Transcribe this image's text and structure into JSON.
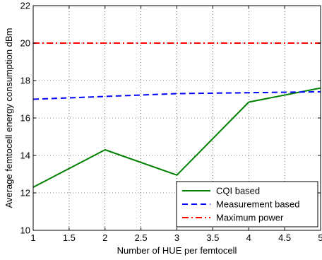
{
  "chart_data": {
    "type": "line",
    "xlabel": "Number of HUE per femtocell",
    "ylabel": "Average femtocell energy consumption dBm",
    "xlim": [
      1,
      5
    ],
    "ylim": [
      10,
      22
    ],
    "xticks": [
      "1",
      "1.5",
      "2",
      "2.5",
      "3",
      "3.5",
      "4",
      "4.5",
      "5"
    ],
    "yticks": [
      "10",
      "12",
      "14",
      "16",
      "18",
      "20",
      "22"
    ],
    "grid": true,
    "legend_position": "bottom-right",
    "series": [
      {
        "name": "CQI based",
        "color": "#008000",
        "style": "solid",
        "x": [
          1,
          2,
          3,
          4,
          5
        ],
        "y": [
          12.3,
          14.3,
          12.95,
          16.85,
          17.6
        ]
      },
      {
        "name": "Measurement based",
        "color": "#0000ff",
        "style": "dashed",
        "x": [
          1,
          2,
          3,
          4,
          5
        ],
        "y": [
          17.0,
          17.15,
          17.3,
          17.35,
          17.4
        ]
      },
      {
        "name": "Maximum power",
        "color": "#ff0000",
        "style": "dashdot",
        "x": [
          1,
          2,
          3,
          4,
          5
        ],
        "y": [
          20.0,
          20.0,
          20.0,
          20.0,
          20.0
        ]
      }
    ]
  }
}
